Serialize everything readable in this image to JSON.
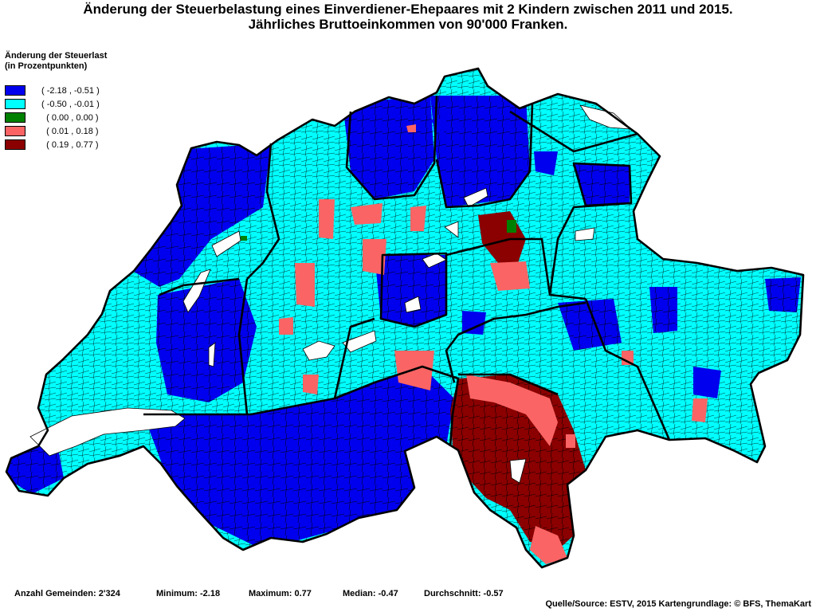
{
  "title": {
    "line1": "Änderung der Steuerbelastung eines Einverdiener-Ehepaares mit 2 Kindern zwischen 2011 und 2015.",
    "line2": "Jährliches Bruttoeinkommen von 90'000 Franken."
  },
  "legend": {
    "title_line1": "Änderung der Steuerlast",
    "title_line2": "(in Prozentpunkten)",
    "classes": [
      {
        "label": "( -2.18 , -0.51 )",
        "color": "#0000ee"
      },
      {
        "label": "( -0.50 , -0.01 )",
        "color": "#00ffff"
      },
      {
        "label": "  ( 0.00 , 0.00 )",
        "color": "#008000"
      },
      {
        "label": "  ( 0.01 , 0.18 )",
        "color": "#fa6464"
      },
      {
        "label": "  ( 0.19 , 0.77 )",
        "color": "#8b0000"
      }
    ]
  },
  "stats": {
    "count": "Anzahl Gemeinden: 2'324",
    "minimum": "Minimum: -2.18",
    "maximum": "Maximum: 0.77",
    "median": "Median: -0.47",
    "mean": "Durchschnitt: -0.57"
  },
  "source": "Quelle/Source: ESTV, 2015 Kartengrundlage: © BFS, ThemaKart"
}
